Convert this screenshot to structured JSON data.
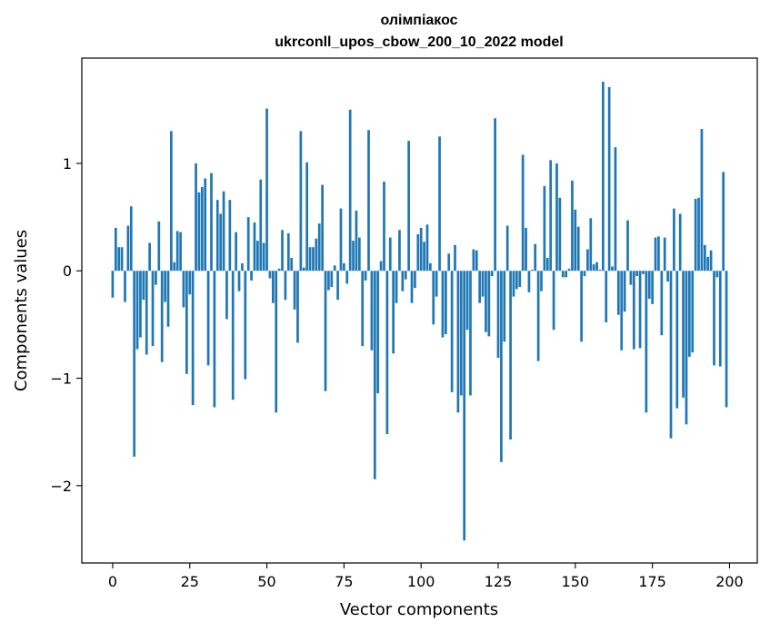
{
  "chart_data": {
    "type": "bar",
    "title": "олімпіакос",
    "subtitle": "ukrconll_upos_cbow_200_10_2022 model",
    "xlabel": "Vector components",
    "ylabel": "Components values",
    "xlim": [
      -10,
      209
    ],
    "ylim": [
      -2.72,
      1.98
    ],
    "xticks": [
      0,
      25,
      50,
      75,
      100,
      125,
      150,
      175,
      200
    ],
    "xtick_labels": [
      "0",
      "25",
      "50",
      "75",
      "100",
      "125",
      "150",
      "175",
      "200"
    ],
    "yticks": [
      -2,
      -1,
      0,
      1
    ],
    "ytick_labels": [
      "−2",
      "−1",
      "0",
      "1"
    ],
    "grid": false,
    "bar_color": "#1f77b4",
    "x": [
      0,
      1,
      2,
      3,
      4,
      5,
      6,
      7,
      8,
      9,
      10,
      11,
      12,
      13,
      14,
      15,
      16,
      17,
      18,
      19,
      20,
      21,
      22,
      23,
      24,
      25,
      26,
      27,
      28,
      29,
      30,
      31,
      32,
      33,
      34,
      35,
      36,
      37,
      38,
      39,
      40,
      41,
      42,
      43,
      44,
      45,
      46,
      47,
      48,
      49,
      50,
      51,
      52,
      53,
      54,
      55,
      56,
      57,
      58,
      59,
      60,
      61,
      62,
      63,
      64,
      65,
      66,
      67,
      68,
      69,
      70,
      71,
      72,
      73,
      74,
      75,
      76,
      77,
      78,
      79,
      80,
      81,
      82,
      83,
      84,
      85,
      86,
      87,
      88,
      89,
      90,
      91,
      92,
      93,
      94,
      95,
      96,
      97,
      98,
      99,
      100,
      101,
      102,
      103,
      104,
      105,
      106,
      107,
      108,
      109,
      110,
      111,
      112,
      113,
      114,
      115,
      116,
      117,
      118,
      119,
      120,
      121,
      122,
      123,
      124,
      125,
      126,
      127,
      128,
      129,
      130,
      131,
      132,
      133,
      134,
      135,
      136,
      137,
      138,
      139,
      140,
      141,
      142,
      143,
      144,
      145,
      146,
      147,
      148,
      149,
      150,
      151,
      152,
      153,
      154,
      155,
      156,
      157,
      158,
      159,
      160,
      161,
      162,
      163,
      164,
      165,
      166,
      167,
      168,
      169,
      170,
      171,
      172,
      173,
      174,
      175,
      176,
      177,
      178,
      179,
      180,
      181,
      182,
      183,
      184,
      185,
      186,
      187,
      188,
      189,
      190,
      191,
      192,
      193,
      194,
      195,
      196,
      197,
      198,
      199
    ],
    "values": [
      -0.25,
      0.4,
      0.22,
      0.22,
      -0.29,
      0.42,
      0.6,
      -1.73,
      -0.73,
      -0.62,
      -0.27,
      -0.78,
      0.26,
      -0.7,
      -0.13,
      0.46,
      -0.85,
      -0.29,
      -0.52,
      1.3,
      0.08,
      0.37,
      0.36,
      -0.34,
      -0.96,
      -0.22,
      -1.25,
      1.0,
      0.73,
      0.78,
      0.86,
      -0.88,
      0.91,
      -1.27,
      0.66,
      0.53,
      0.74,
      -0.45,
      0.66,
      -1.2,
      0.36,
      -0.19,
      0.07,
      -1.01,
      0.5,
      -0.09,
      0.45,
      0.28,
      0.85,
      0.26,
      1.51,
      -0.07,
      -0.3,
      -1.32,
      0.02,
      0.38,
      -0.27,
      0.35,
      0.12,
      -0.36,
      -0.67,
      1.3,
      0.03,
      1.01,
      0.22,
      0.22,
      0.3,
      0.44,
      0.8,
      -1.12,
      -0.18,
      -0.15,
      0.05,
      -0.27,
      0.58,
      0.07,
      -0.12,
      1.5,
      0.28,
      0.56,
      0.31,
      -0.7,
      -0.09,
      1.31,
      -0.74,
      -1.94,
      -1.14,
      0.09,
      0.83,
      -1.52,
      0.31,
      -0.77,
      -0.3,
      0.38,
      -0.19,
      -0.08,
      1.21,
      -0.3,
      -0.16,
      0.34,
      0.4,
      0.27,
      0.43,
      0.07,
      -0.5,
      -0.24,
      1.25,
      -0.62,
      -0.59,
      0.16,
      -1.13,
      0.24,
      -1.32,
      -1.16,
      -2.51,
      -0.55,
      -1.16,
      0.2,
      0.19,
      -0.3,
      -0.24,
      -0.57,
      -0.61,
      -0.05,
      1.42,
      -0.81,
      -1.78,
      -0.66,
      0.42,
      -1.57,
      -0.24,
      -0.17,
      -0.15,
      1.08,
      0.4,
      -0.2,
      0.01,
      0.25,
      -0.84,
      -0.19,
      0.79,
      0.12,
      1.03,
      -0.55,
      1.0,
      0.68,
      -0.06,
      -0.06,
      0.02,
      0.84,
      0.57,
      0.41,
      -0.66,
      -0.05,
      0.2,
      0.49,
      0.06,
      0.08,
      0.01,
      1.76,
      -0.48,
      1.71,
      0.04,
      1.15,
      -0.41,
      -0.74,
      -0.38,
      0.47,
      -0.13,
      -0.73,
      -0.05,
      -0.72,
      -0.03,
      -1.32,
      -0.26,
      -0.31,
      0.31,
      0.32,
      -0.6,
      0.31,
      -0.1,
      -1.56,
      0.58,
      -1.28,
      0.53,
      -1.18,
      -1.43,
      -0.8,
      -0.76,
      0.67,
      0.68,
      1.32,
      0.24,
      0.13,
      0.19,
      -0.88,
      -0.06,
      -0.89,
      0.92,
      -1.27
    ]
  }
}
